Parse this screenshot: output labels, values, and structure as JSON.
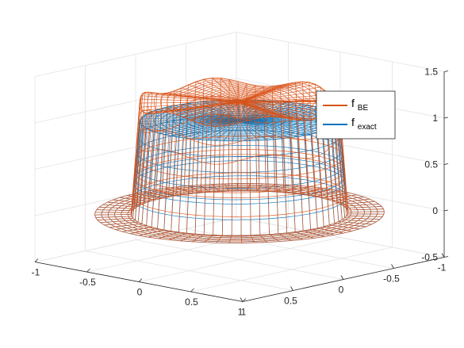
{
  "chart_data": {
    "type": "surface-mesh-3d",
    "zlim": [
      -0.5,
      1.5
    ],
    "xlim": [
      -1,
      1
    ],
    "ylim": [
      -1,
      1
    ],
    "grid": true,
    "legend_position": "top-right",
    "z_ticks": [
      "-0.5",
      "0",
      "0.5",
      "1",
      "1.5"
    ],
    "x_ticks": [
      "-1",
      "-0.5",
      "0",
      "0.5",
      "1"
    ],
    "y_ticks": [
      "-1",
      "-0.5",
      "0",
      "0.5",
      "1"
    ],
    "series": [
      {
        "name_main": "f",
        "name_sub": "BE",
        "color": "#d95319",
        "plateau_value": 1.2,
        "outer_value": 0.0,
        "plateau_radius": 0.72,
        "domain_radius": 1.0
      },
      {
        "name_main": "f",
        "name_sub": "exact",
        "color": "#0072bd",
        "plateau_value": 1.0,
        "outer_value": 0.0,
        "plateau_radius": 0.72,
        "domain_radius": 1.0
      }
    ]
  }
}
